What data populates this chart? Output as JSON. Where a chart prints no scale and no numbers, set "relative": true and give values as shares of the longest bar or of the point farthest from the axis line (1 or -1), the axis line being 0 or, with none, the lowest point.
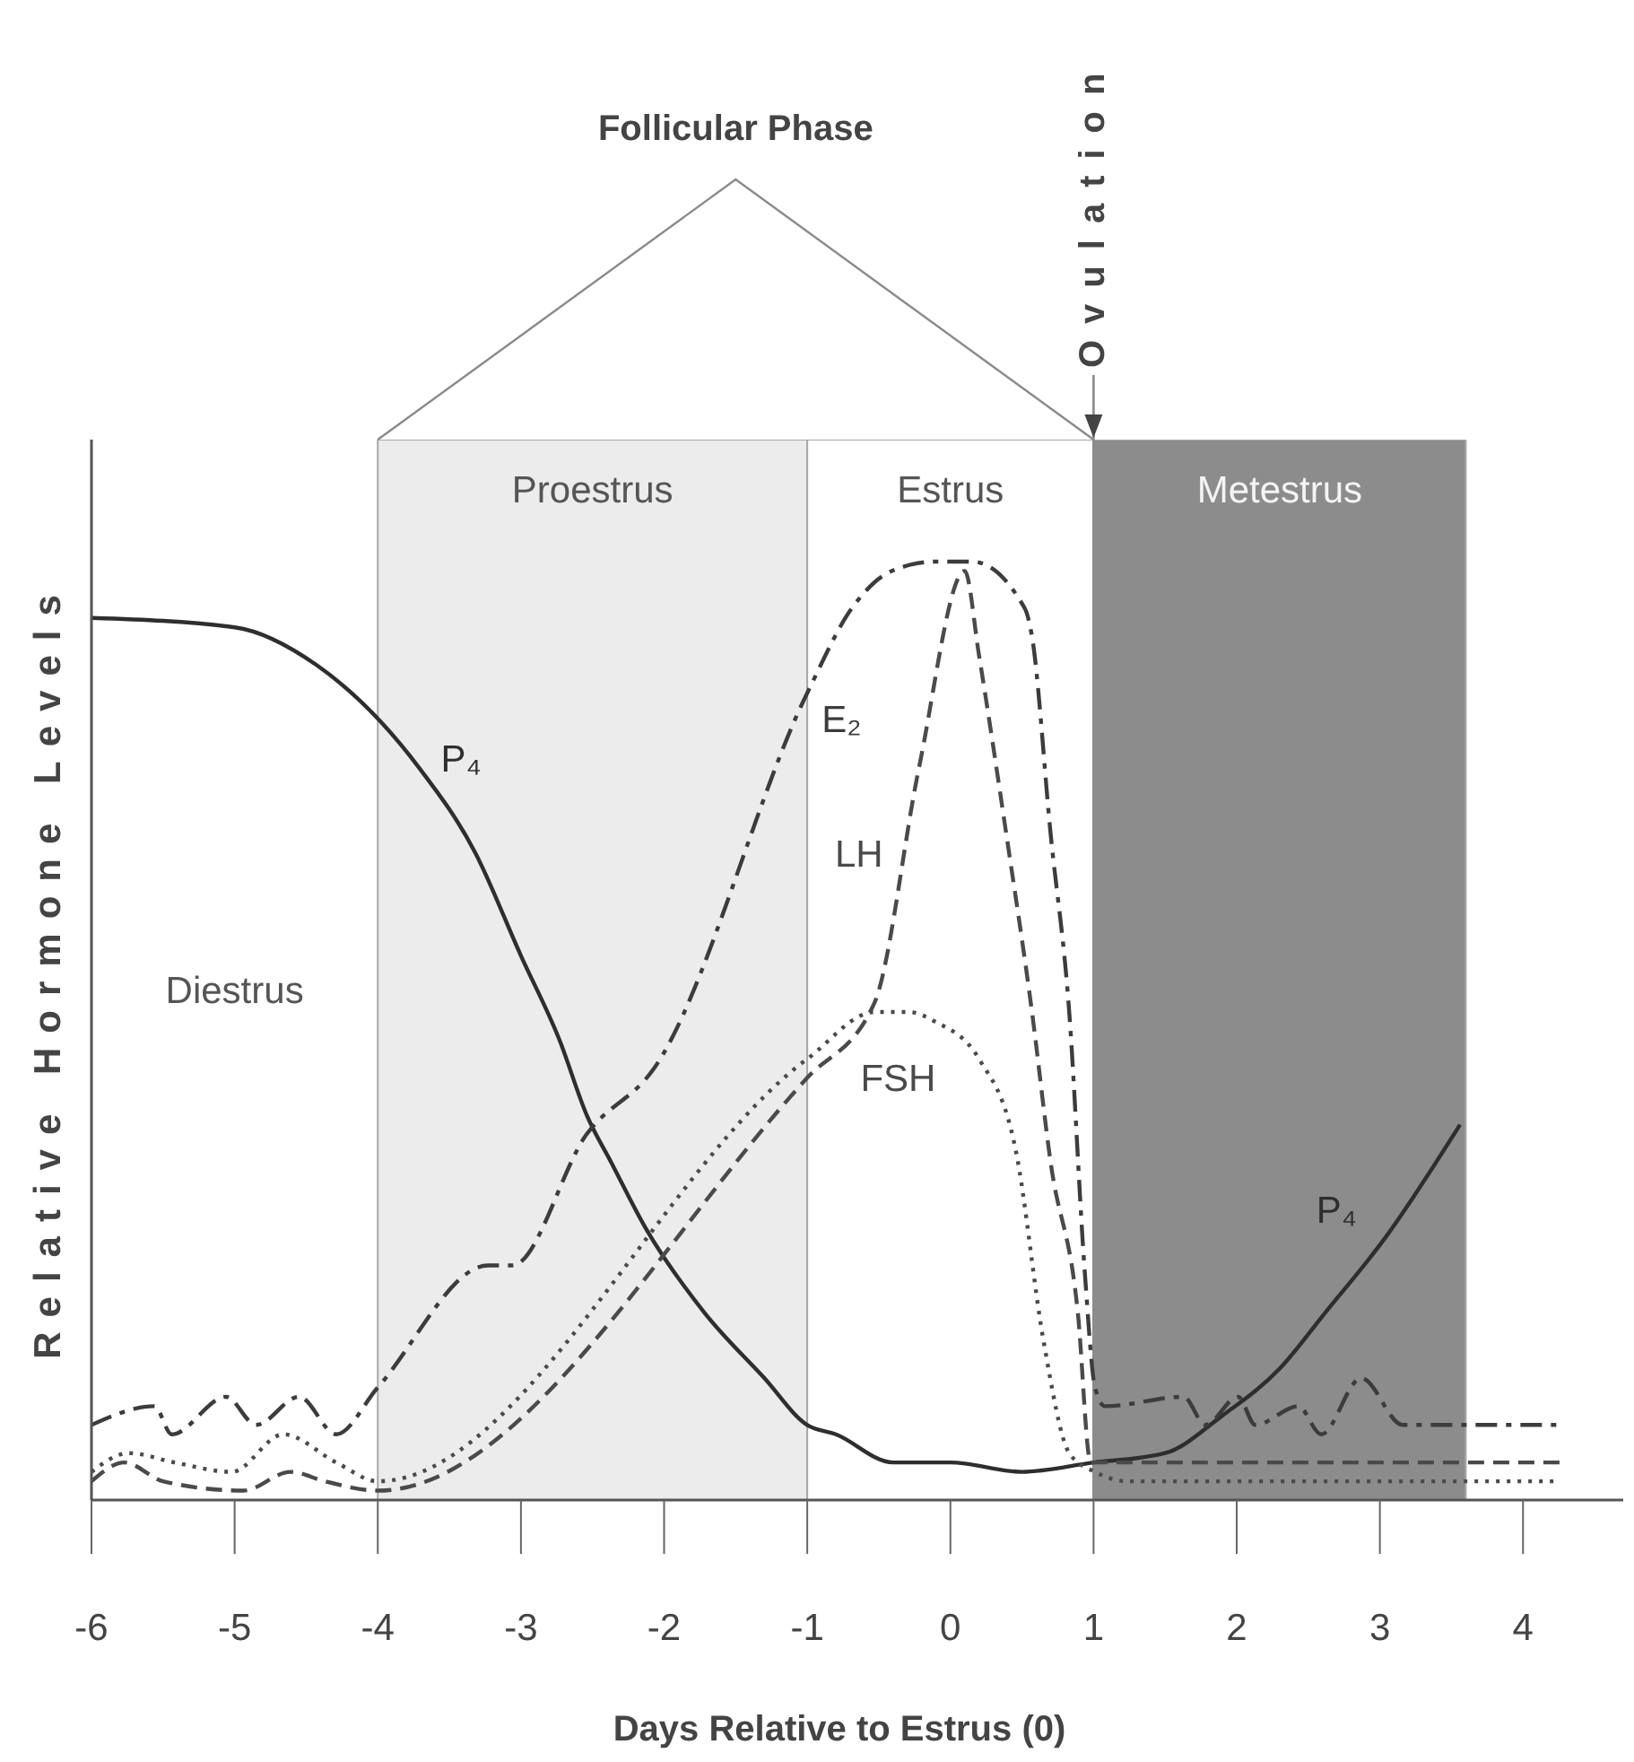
{
  "chart_data": {
    "type": "line",
    "xlabel": "Days Relative to Estrus (0)",
    "ylabel": "Relative Hormone Levels",
    "relative": true,
    "xlim": [
      -6,
      4.7
    ],
    "xticks": [
      -6,
      -5,
      -4,
      -3,
      -2,
      -1,
      0,
      1,
      2,
      3,
      4
    ],
    "series": [
      {
        "name": "P₄",
        "color": "#2e2e2e",
        "line_style": "solid",
        "x": [
          -6,
          -5,
          -4.43,
          -3.71,
          -3.32,
          -3,
          -2.73,
          -2.54,
          -2.37,
          -2.13,
          -1.72,
          -1.3,
          -1,
          -0.8,
          -0.4,
          0,
          0.5,
          1,
          1.5,
          1.9,
          2.3,
          2.62,
          3.04,
          3.56
        ],
        "values": [
          0.94,
          0.93,
          0.89,
          0.78,
          0.69,
          0.58,
          0.49,
          0.41,
          0.36,
          0.29,
          0.2,
          0.13,
          0.08,
          0.07,
          0.04,
          0.04,
          0.03,
          0.04,
          0.05,
          0.09,
          0.14,
          0.2,
          0.28,
          0.4
        ]
      },
      {
        "name": "E₂",
        "color": "#3c3c3c",
        "line_style": "dashdot",
        "x": [
          -6,
          -5.56,
          -5.44,
          -5.06,
          -4.85,
          -4.55,
          -4.29,
          -4,
          -3.23,
          -3.06,
          -2.54,
          -2.07,
          -1,
          -0.69,
          -0.41,
          -0.1,
          0.15,
          0.52,
          0.57,
          0.7,
          0.83,
          0.94,
          1.01,
          1.08,
          1.63,
          1.78,
          2.01,
          2.13,
          2.43,
          2.59,
          2.87,
          3.16,
          4.26
        ],
        "values": [
          0.08,
          0.1,
          0.07,
          0.11,
          0.08,
          0.11,
          0.07,
          0.12,
          0.25,
          0.25,
          0.39,
          0.46,
          0.86,
          0.95,
          0.99,
          1,
          1,
          0.95,
          0.92,
          0.71,
          0.52,
          0.24,
          0.12,
          0.1,
          0.11,
          0.08,
          0.11,
          0.08,
          0.1,
          0.07,
          0.13,
          0.08,
          0.08
        ]
      },
      {
        "name": "LH",
        "color": "#4a4a4a",
        "line_style": "dashed",
        "x": [
          -6,
          -5.77,
          -5.5,
          -4.94,
          -4.61,
          -4.37,
          -4,
          -1,
          -0.53,
          -0.22,
          0.1,
          0.2,
          0.39,
          0.57,
          0.7,
          0.89,
          0.98,
          1.05,
          4.26
        ],
        "values": [
          0.02,
          0.04,
          0.02,
          0.01,
          0.03,
          0.02,
          0.01,
          0.45,
          0.53,
          0.78,
          0.99,
          0.9,
          0.71,
          0.52,
          0.36,
          0.2,
          0.04,
          0.04,
          0.04
        ]
      },
      {
        "name": "FSH",
        "color": "#4a4a4a",
        "line_style": "dotted",
        "x": [
          -6,
          -5.74,
          -5.42,
          -5.02,
          -4.66,
          -4.29,
          -4,
          -1,
          -0.53,
          -0.29,
          -0.11,
          0.2,
          0.46,
          0.65,
          0.83,
          1.01,
          1.24,
          4.26
        ],
        "values": [
          0.03,
          0.05,
          0.04,
          0.03,
          0.07,
          0.04,
          0.02,
          0.47,
          0.52,
          0.52,
          0.51,
          0.47,
          0.37,
          0.17,
          0.05,
          0.03,
          0.02,
          0.02
        ]
      }
    ],
    "bands": [
      {
        "axis": "x",
        "from": -4,
        "to": -1,
        "label": "Proestrus",
        "color": "#ececec"
      },
      {
        "axis": "x",
        "from": -1,
        "to": 1,
        "label": "Estrus",
        "color": "#ffffff"
      },
      {
        "axis": "x",
        "from": 1,
        "to": 3.6,
        "label": "Metestrus",
        "color": "#8c8c8c"
      }
    ],
    "ref_lines": [
      {
        "axis": "x",
        "value": 1,
        "label": "Ovulation",
        "color": "#8a8a8a"
      }
    ],
    "annotations": [
      "Follicular Phase",
      "Diestrus"
    ]
  }
}
